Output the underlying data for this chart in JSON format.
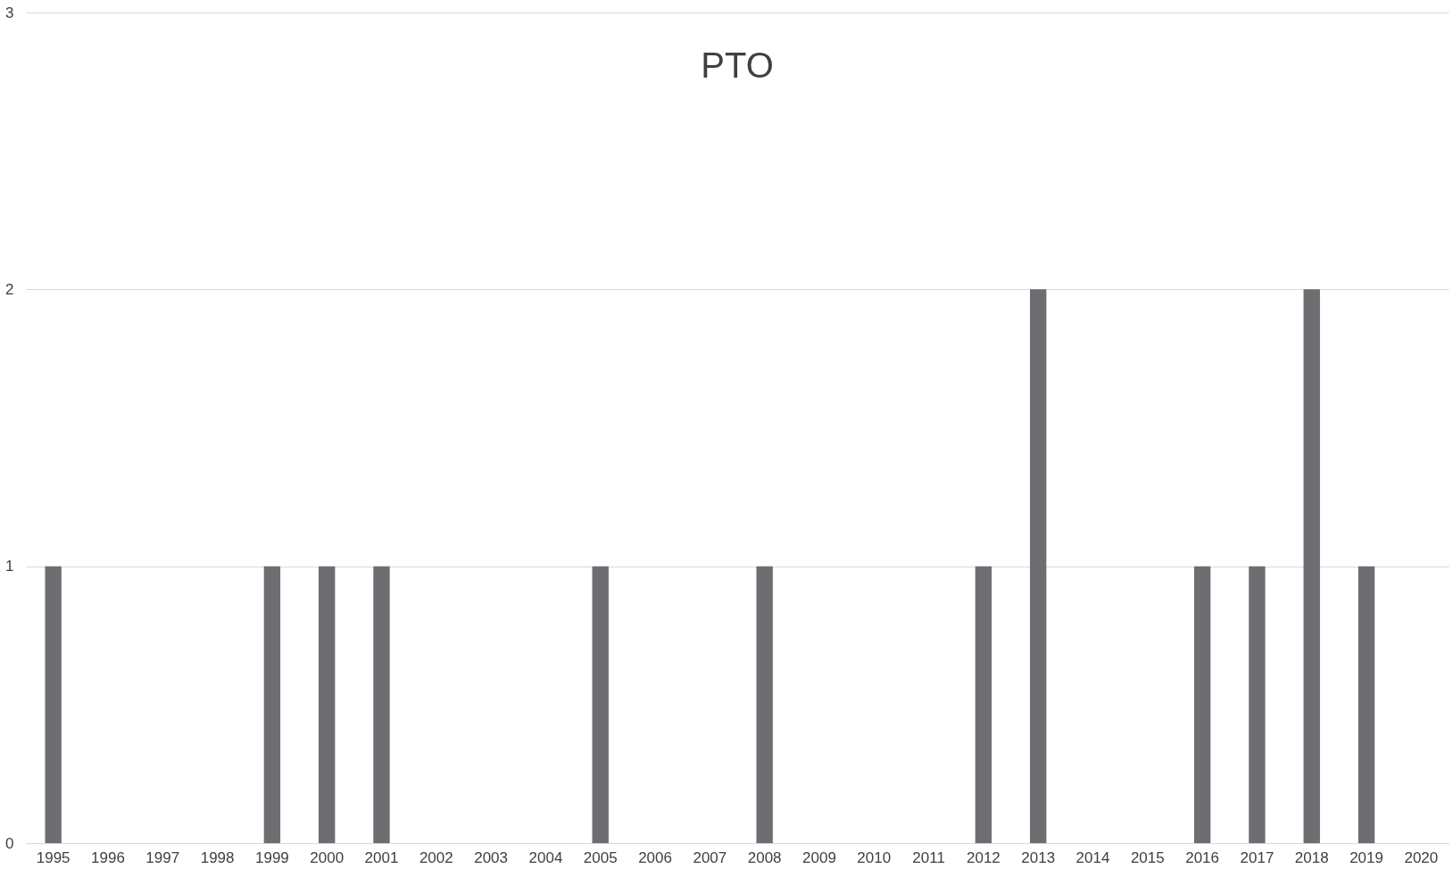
{
  "chart_data": {
    "type": "bar",
    "title": "PTO",
    "categories": [
      "1995",
      "1996",
      "1997",
      "1998",
      "1999",
      "2000",
      "2001",
      "2002",
      "2003",
      "2004",
      "2005",
      "2006",
      "2007",
      "2008",
      "2009",
      "2010",
      "2011",
      "2012",
      "2013",
      "2014",
      "2015",
      "2016",
      "2017",
      "2018",
      "2019",
      "2020"
    ],
    "values": [
      1,
      0,
      0,
      0,
      1,
      1,
      1,
      0,
      0,
      0,
      1,
      0,
      0,
      1,
      0,
      0,
      0,
      1,
      2,
      0,
      0,
      1,
      1,
      2,
      1,
      0
    ],
    "color": "#6e6d72",
    "ylim": [
      0,
      3
    ],
    "yticks": [
      0,
      1,
      2,
      3
    ],
    "grid": "y"
  }
}
